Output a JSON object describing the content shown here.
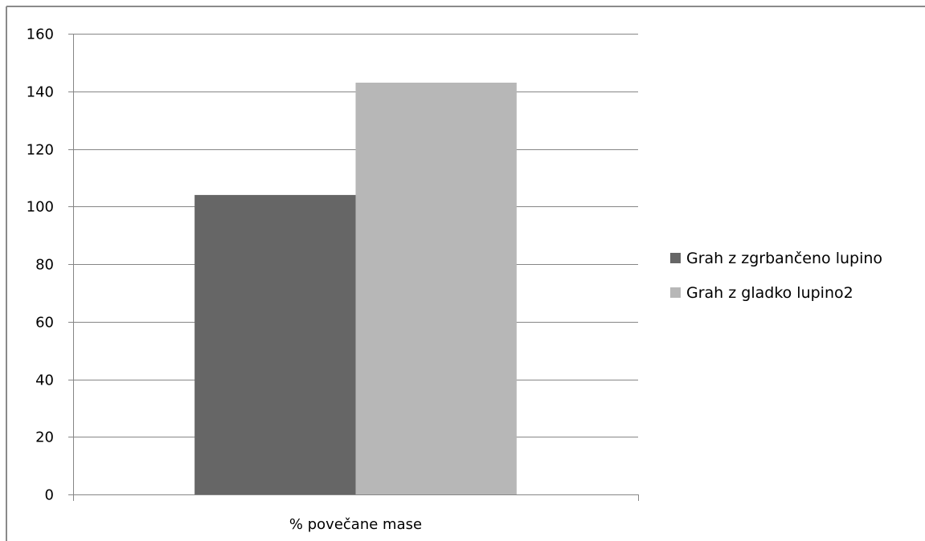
{
  "chart_data": {
    "type": "bar",
    "categories": [
      "% povečane mase"
    ],
    "series": [
      {
        "name": "Grah z zgrbančeno lupino",
        "values": [
          104
        ],
        "color": "#666666"
      },
      {
        "name": "Grah z gladko lupino2",
        "values": [
          143
        ],
        "color": "#b7b7b7"
      }
    ],
    "ylim": [
      0,
      160
    ],
    "yticks": [
      0,
      20,
      40,
      60,
      80,
      100,
      120,
      140,
      160
    ],
    "ytick_labels": [
      "0",
      "20",
      "40",
      "60",
      "80",
      "100",
      "120",
      "140",
      "160"
    ],
    "grid": true,
    "legend": "right",
    "colors": {
      "gridline": "#868686",
      "axis": "#868686",
      "frame": "#8a8a8a"
    }
  }
}
